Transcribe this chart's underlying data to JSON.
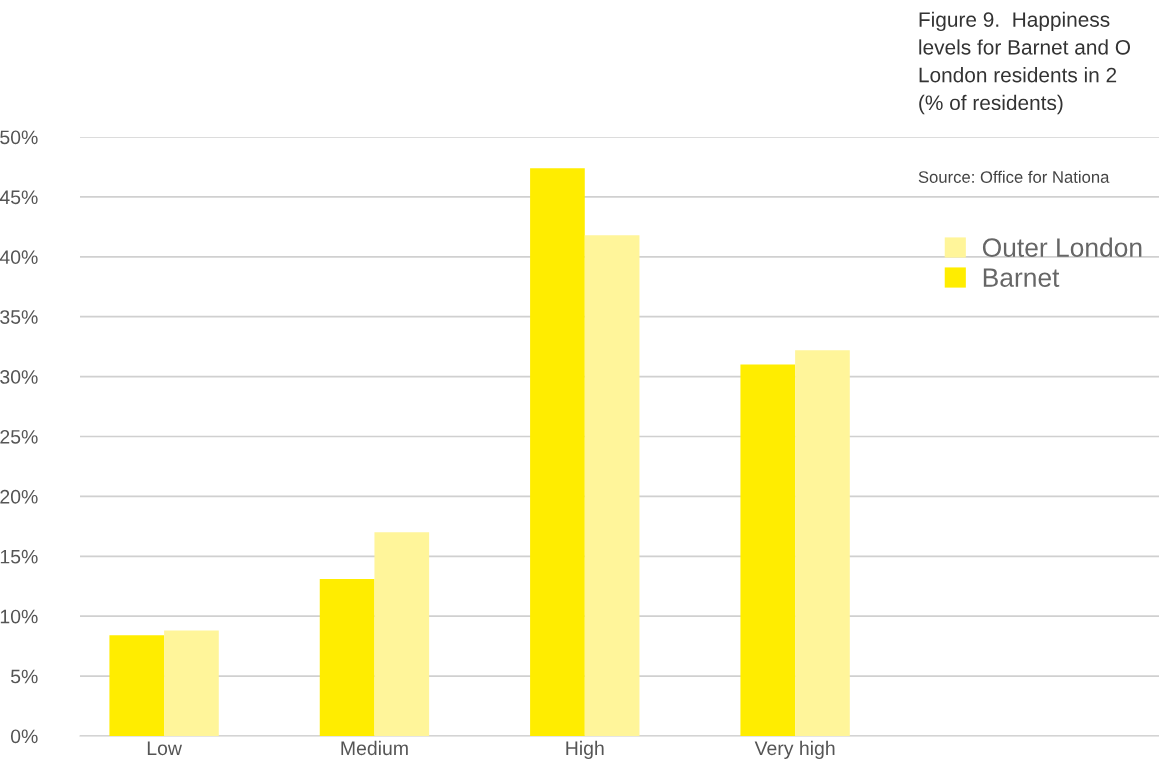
{
  "chart_data": {
    "type": "bar",
    "title": "Figure 9.  Happiness\nlevels for Barnet and O\nLondon residents in 2\n(% of residents)",
    "annotations": [
      "Source: Office for Nationa"
    ],
    "categories": [
      "Low",
      "Medium",
      "High",
      "Very high"
    ],
    "series": [
      {
        "name": "Barnet",
        "color": "#ffed00",
        "values": [
          8.4,
          13.1,
          47.4,
          31.0
        ]
      },
      {
        "name": "Outer London",
        "color": "#fff59a",
        "values": [
          8.8,
          17.0,
          41.8,
          32.2
        ]
      }
    ],
    "ylim": [
      0,
      50
    ],
    "yticks": [
      {
        "value": 0,
        "label": "0%"
      },
      {
        "value": 5,
        "label": "5%"
      },
      {
        "value": 10,
        "label": "10%"
      },
      {
        "value": 15,
        "label": "15%"
      },
      {
        "value": 20,
        "label": "20%"
      },
      {
        "value": 25,
        "label": "25%"
      },
      {
        "value": 30,
        "label": "30%"
      },
      {
        "value": 35,
        "label": "35%"
      },
      {
        "value": 40,
        "label": "40%"
      },
      {
        "value": 45,
        "label": "45%"
      },
      {
        "value": 50,
        "label": "50%"
      }
    ],
    "grid": "y",
    "legend": "top right"
  }
}
